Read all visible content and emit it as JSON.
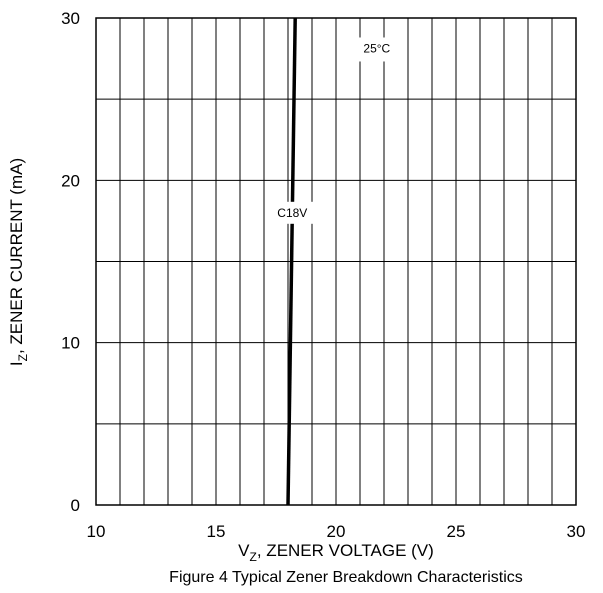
{
  "chart_data": {
    "type": "line",
    "caption": "Figure 4 Typical Zener Breakdown Characteristics",
    "xlabel": {
      "main": "V",
      "sub": "Z",
      "rest": ", ZENER VOLTAGE (V)"
    },
    "ylabel": {
      "main": "I",
      "sub": "Z",
      "rest": ", ZENER CURRENT (mA)"
    },
    "xlim": [
      10,
      30
    ],
    "ylim": [
      0,
      30
    ],
    "x_ticks": [
      10,
      15,
      20,
      25,
      30
    ],
    "y_ticks": [
      0,
      10,
      20,
      30
    ],
    "x_minor_step": 1,
    "y_minor_step": 5,
    "grid": true,
    "temperature_label": "25°C",
    "series": [
      {
        "name": "C18V",
        "x": [
          18.0,
          18.3
        ],
        "y": [
          0,
          30
        ]
      }
    ]
  }
}
